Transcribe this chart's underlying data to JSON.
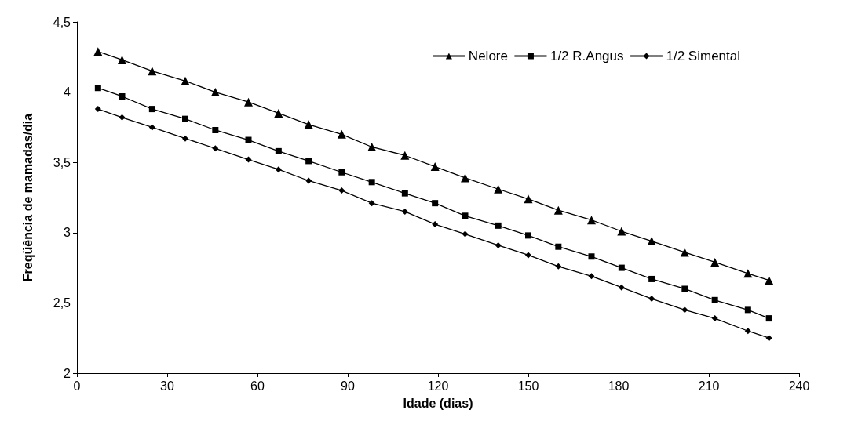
{
  "chart_data": {
    "type": "line",
    "xlabel": "Idade (dias)",
    "ylabel": "Freqüência de mamadas/dia",
    "x": [
      7,
      15,
      25,
      36,
      46,
      57,
      67,
      77,
      88,
      98,
      109,
      119,
      129,
      140,
      150,
      160,
      171,
      181,
      191,
      202,
      212,
      223,
      230
    ],
    "series": [
      {
        "name": "Nelore",
        "color": "#000000",
        "marker": "triangle",
        "values": [
          4.29,
          4.23,
          4.15,
          4.08,
          4.0,
          3.93,
          3.85,
          3.77,
          3.7,
          3.61,
          3.55,
          3.47,
          3.39,
          3.31,
          3.24,
          3.16,
          3.09,
          3.01,
          2.94,
          2.86,
          2.79,
          2.71,
          2.66
        ]
      },
      {
        "name": "1/2 R.Angus",
        "color": "#000000",
        "marker": "square",
        "values": [
          4.03,
          3.97,
          3.88,
          3.81,
          3.73,
          3.66,
          3.58,
          3.51,
          3.43,
          3.36,
          3.28,
          3.21,
          3.12,
          3.05,
          2.98,
          2.9,
          2.83,
          2.75,
          2.67,
          2.6,
          2.52,
          2.45,
          2.39
        ]
      },
      {
        "name": "1/2 Simental",
        "color": "#000000",
        "marker": "diamond",
        "values": [
          3.88,
          3.82,
          3.75,
          3.67,
          3.6,
          3.52,
          3.45,
          3.37,
          3.3,
          3.21,
          3.15,
          3.06,
          2.99,
          2.91,
          2.84,
          2.76,
          2.69,
          2.61,
          2.53,
          2.45,
          2.39,
          2.3,
          2.25
        ]
      }
    ],
    "xlim": [
      0,
      240
    ],
    "xticks": [
      0,
      30,
      60,
      90,
      120,
      150,
      180,
      210,
      240
    ],
    "ylim": [
      2,
      4.5
    ],
    "yticks": [
      2,
      {
        "value": 2.5,
        "label": "2,5"
      },
      3,
      {
        "value": 3.5,
        "label": "3,5"
      },
      4,
      {
        "value": 4.5,
        "label": "4,5"
      }
    ],
    "grid": false,
    "legend": "top right",
    "line_style": "solid"
  }
}
